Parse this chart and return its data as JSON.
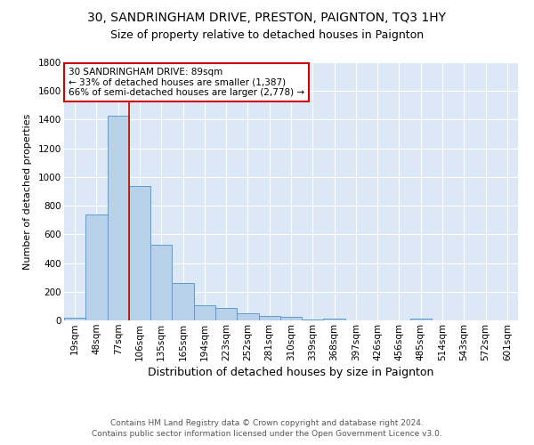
{
  "title1": "30, SANDRINGHAM DRIVE, PRESTON, PAIGNTON, TQ3 1HY",
  "title2": "Size of property relative to detached houses in Paignton",
  "xlabel": "Distribution of detached houses by size in Paignton",
  "ylabel": "Number of detached properties",
  "categories": [
    "19sqm",
    "48sqm",
    "77sqm",
    "106sqm",
    "135sqm",
    "165sqm",
    "194sqm",
    "223sqm",
    "252sqm",
    "281sqm",
    "310sqm",
    "339sqm",
    "368sqm",
    "397sqm",
    "426sqm",
    "456sqm",
    "485sqm",
    "514sqm",
    "543sqm",
    "572sqm",
    "601sqm"
  ],
  "values": [
    20,
    740,
    1430,
    935,
    530,
    263,
    103,
    88,
    48,
    28,
    22,
    5,
    15,
    2,
    2,
    2,
    11,
    0,
    2,
    2,
    2
  ],
  "bar_color": "#b8d0e8",
  "bar_edge_color": "#5b9bd5",
  "vline_x_index": 2.5,
  "vline_color": "#cc0000",
  "annotation_text": "30 SANDRINGHAM DRIVE: 89sqm\n← 33% of detached houses are smaller (1,387)\n66% of semi-detached houses are larger (2,778) →",
  "annotation_box_color": "#ffffff",
  "annotation_box_edge": "#cc0000",
  "footer": "Contains HM Land Registry data © Crown copyright and database right 2024.\nContains public sector information licensed under the Open Government Licence v3.0.",
  "background_color": "#dce8f5",
  "ylim": [
    0,
    1800
  ],
  "yticks": [
    0,
    200,
    400,
    600,
    800,
    1000,
    1200,
    1400,
    1600,
    1800
  ],
  "title1_fontsize": 10,
  "title2_fontsize": 9,
  "xlabel_fontsize": 9,
  "ylabel_fontsize": 8,
  "tick_fontsize": 7.5,
  "annotation_fontsize": 7.5,
  "footer_fontsize": 6.5
}
